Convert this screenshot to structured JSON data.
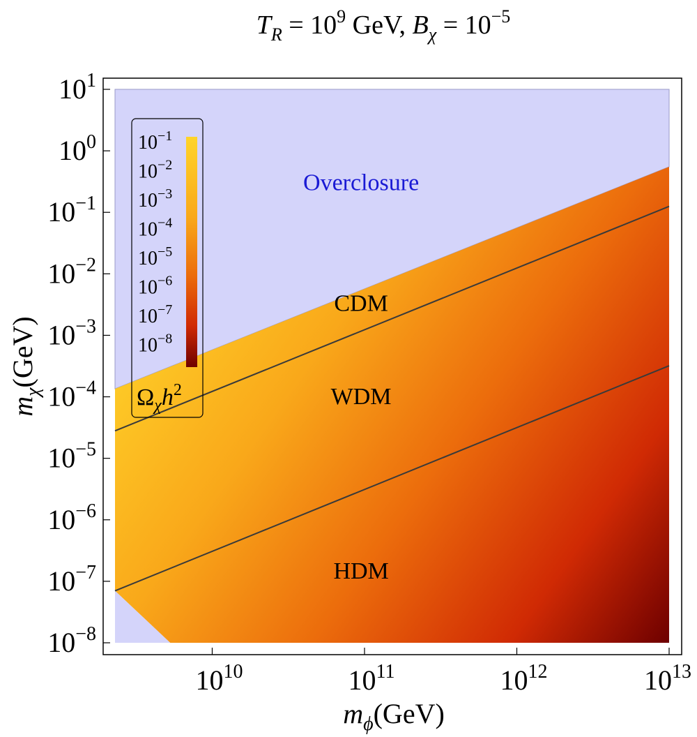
{
  "chart_data": {
    "type": "heatmap",
    "title": {
      "t_symbol": "T",
      "t_sub": "R",
      "t_value_base": "10",
      "t_value_exp": "9",
      "t_unit": "GeV,",
      "b_symbol": "B",
      "b_sub": "χ",
      "b_value_base": "10",
      "b_value_exp": "−5"
    },
    "xlabel": {
      "symbol": "m",
      "sub": "ϕ",
      "unit": "(GeV)"
    },
    "ylabel": {
      "symbol": "m",
      "sub": "χ",
      "unit": "(GeV)"
    },
    "x_scale": "log",
    "y_scale": "log",
    "xlim": [
      2300000000.0,
      10000000000000.0
    ],
    "ylim": [
      1e-08,
      10
    ],
    "x_ticks": [
      {
        "value": 10000000000.0,
        "base": "10",
        "exp": "10"
      },
      {
        "value": 100000000000.0,
        "base": "10",
        "exp": "11"
      },
      {
        "value": 1000000000000.0,
        "base": "10",
        "exp": "12"
      },
      {
        "value": 10000000000000.0,
        "base": "10",
        "exp": "13"
      }
    ],
    "y_ticks": [
      {
        "value": 1e-08,
        "base": "10",
        "exp": "−8"
      },
      {
        "value": 1e-07,
        "base": "10",
        "exp": "−7"
      },
      {
        "value": 1e-06,
        "base": "10",
        "exp": "−6"
      },
      {
        "value": 1e-05,
        "base": "10",
        "exp": "−5"
      },
      {
        "value": 0.0001,
        "base": "10",
        "exp": "−4"
      },
      {
        "value": 0.001,
        "base": "10",
        "exp": "−3"
      },
      {
        "value": 0.01,
        "base": "10",
        "exp": "−2"
      },
      {
        "value": 0.1,
        "base": "10",
        "exp": "−1"
      },
      {
        "value": 1,
        "base": "10",
        "exp": "0"
      },
      {
        "value": 10,
        "base": "10",
        "exp": "1"
      }
    ],
    "overclosure_boundary": [
      {
        "x": 2300000000.0,
        "y": 0.000135
      },
      {
        "x": 10000000000000.0,
        "y": 0.55
      }
    ],
    "lower_boundary": [
      {
        "x": 2300000000.0,
        "y": 7e-08
      },
      {
        "x": 5300000000.0,
        "y": 1e-08
      }
    ],
    "lines": [
      {
        "from": {
          "x": 2300000000.0,
          "y": 2.8e-05
        },
        "to": {
          "x": 10000000000000.0,
          "y": 0.125
        }
      },
      {
        "from": {
          "x": 2300000000.0,
          "y": 7e-08
        },
        "to": {
          "x": 10000000000000.0,
          "y": 0.00032
        }
      }
    ],
    "regions": [
      {
        "label": "Overclosure",
        "x": 95000000000.0,
        "y": 0.23,
        "color": "#1a1ad4"
      },
      {
        "label": "CDM",
        "x": 95000000000.0,
        "y": 0.0025,
        "color": "#000000"
      },
      {
        "label": "WDM",
        "x": 95000000000.0,
        "y": 7.6e-05,
        "color": "#000000"
      },
      {
        "label": "HDM",
        "x": 95000000000.0,
        "y": 1.1e-07,
        "color": "#000000"
      }
    ],
    "colorbar": {
      "title": {
        "symbol": "Ω",
        "sub": "χ",
        "h": "h",
        "exp": "2"
      },
      "ticks": [
        {
          "base": "10",
          "exp": "−1"
        },
        {
          "base": "10",
          "exp": "−2"
        },
        {
          "base": "10",
          "exp": "−3"
        },
        {
          "base": "10",
          "exp": "−4"
        },
        {
          "base": "10",
          "exp": "−5"
        },
        {
          "base": "10",
          "exp": "−6"
        },
        {
          "base": "10",
          "exp": "−7"
        },
        {
          "base": "10",
          "exp": "−8"
        }
      ],
      "colors": [
        "#ffd42a",
        "#f9a81a",
        "#ec6d0c",
        "#d02a04",
        "#6e0000"
      ]
    },
    "colors": {
      "overclosure_fill": "#d4d4fa",
      "frame": "#000000",
      "line": "#3a3a3a",
      "heat_top": "#ffd42a",
      "heat_bottom_right": "#6e0000"
    },
    "grid": false,
    "legend_position": "top-left"
  }
}
